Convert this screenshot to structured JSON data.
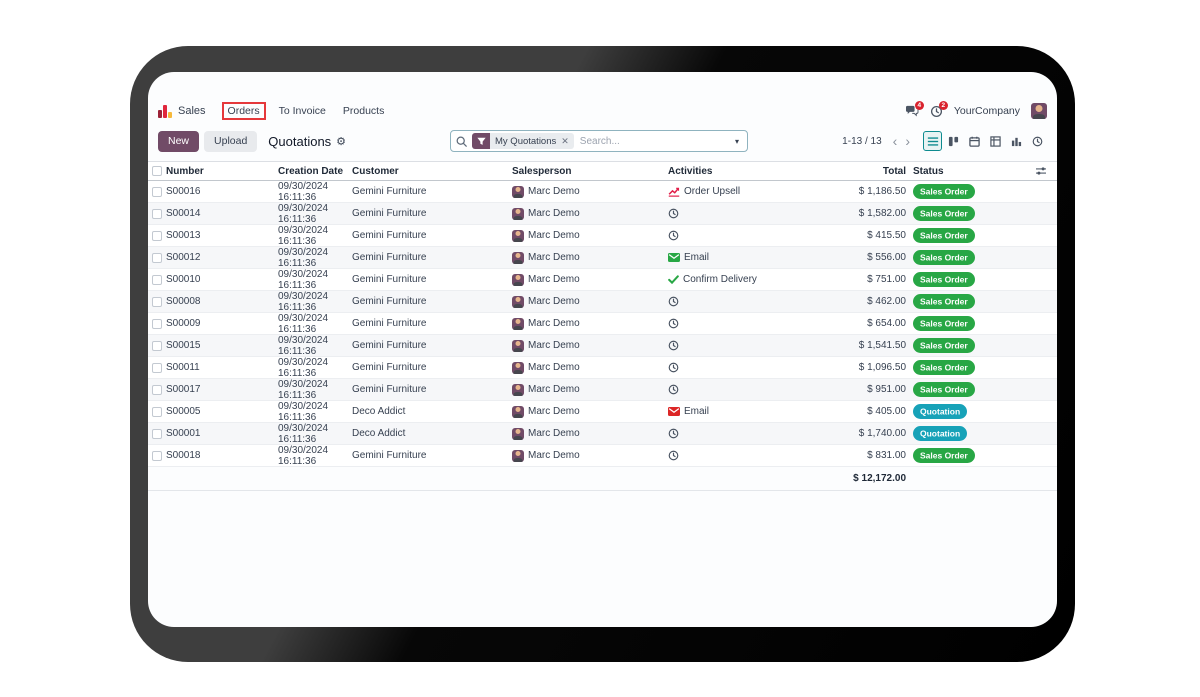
{
  "nav": {
    "app_label": "Sales",
    "menu_items": [
      {
        "label": "Orders",
        "annotated": true
      },
      {
        "label": "To Invoice",
        "annotated": false
      },
      {
        "label": "Products",
        "annotated": false
      }
    ],
    "messages_badge": "4",
    "activities_badge": "2",
    "company": "YourCompany"
  },
  "control": {
    "new_label": "New",
    "upload_label": "Upload",
    "title": "Quotations",
    "search": {
      "facet": "My Quotations",
      "placeholder": "Search..."
    },
    "pager": "1-13 / 13",
    "view_switcher": [
      "list-view",
      "kanban-view",
      "calendar-view",
      "pivot-view",
      "graph-view",
      "activity-view"
    ]
  },
  "table": {
    "headers": {
      "number": "Number",
      "creation_date": "Creation Date",
      "customer": "Customer",
      "salesperson": "Salesperson",
      "activities": "Activities",
      "total": "Total",
      "status": "Status"
    },
    "rows": [
      {
        "number": "S00016",
        "creation_date": "09/30/2024 16:11:36",
        "customer": "Gemini Furniture",
        "salesperson": "Marc Demo",
        "activity": {
          "icon": "chart-up",
          "label": "Order Upsell",
          "color": "#e11d48"
        },
        "total": "$ 1,186.50",
        "status": "Sales Order",
        "status_type": "success"
      },
      {
        "number": "S00014",
        "creation_date": "09/30/2024 16:11:36",
        "customer": "Gemini Furniture",
        "salesperson": "Marc Demo",
        "activity": {
          "icon": "clock",
          "label": "",
          "color": "#4b5563"
        },
        "total": "$ 1,582.00",
        "status": "Sales Order",
        "status_type": "success"
      },
      {
        "number": "S00013",
        "creation_date": "09/30/2024 16:11:36",
        "customer": "Gemini Furniture",
        "salesperson": "Marc Demo",
        "activity": {
          "icon": "clock",
          "label": "",
          "color": "#4b5563"
        },
        "total": "$ 415.50",
        "status": "Sales Order",
        "status_type": "success"
      },
      {
        "number": "S00012",
        "creation_date": "09/30/2024 16:11:36",
        "customer": "Gemini Furniture",
        "salesperson": "Marc Demo",
        "activity": {
          "icon": "envelope",
          "label": "Email",
          "color": "#28a745"
        },
        "total": "$ 556.00",
        "status": "Sales Order",
        "status_type": "success"
      },
      {
        "number": "S00010",
        "creation_date": "09/30/2024 16:11:36",
        "customer": "Gemini Furniture",
        "salesperson": "Marc Demo",
        "activity": {
          "icon": "check",
          "label": "Confirm Delivery",
          "color": "#28a745"
        },
        "total": "$ 751.00",
        "status": "Sales Order",
        "status_type": "success"
      },
      {
        "number": "S00008",
        "creation_date": "09/30/2024 16:11:36",
        "customer": "Gemini Furniture",
        "salesperson": "Marc Demo",
        "activity": {
          "icon": "clock",
          "label": "",
          "color": "#4b5563"
        },
        "total": "$ 462.00",
        "status": "Sales Order",
        "status_type": "success"
      },
      {
        "number": "S00009",
        "creation_date": "09/30/2024 16:11:36",
        "customer": "Gemini Furniture",
        "salesperson": "Marc Demo",
        "activity": {
          "icon": "clock",
          "label": "",
          "color": "#4b5563"
        },
        "total": "$ 654.00",
        "status": "Sales Order",
        "status_type": "success"
      },
      {
        "number": "S00015",
        "creation_date": "09/30/2024 16:11:36",
        "customer": "Gemini Furniture",
        "salesperson": "Marc Demo",
        "activity": {
          "icon": "clock",
          "label": "",
          "color": "#4b5563"
        },
        "total": "$ 1,541.50",
        "status": "Sales Order",
        "status_type": "success"
      },
      {
        "number": "S00011",
        "creation_date": "09/30/2024 16:11:36",
        "customer": "Gemini Furniture",
        "salesperson": "Marc Demo",
        "activity": {
          "icon": "clock",
          "label": "",
          "color": "#4b5563"
        },
        "total": "$ 1,096.50",
        "status": "Sales Order",
        "status_type": "success"
      },
      {
        "number": "S00017",
        "creation_date": "09/30/2024 16:11:36",
        "customer": "Gemini Furniture",
        "salesperson": "Marc Demo",
        "activity": {
          "icon": "clock",
          "label": "",
          "color": "#4b5563"
        },
        "total": "$ 951.00",
        "status": "Sales Order",
        "status_type": "success"
      },
      {
        "number": "S00005",
        "creation_date": "09/30/2024 16:11:36",
        "customer": "Deco Addict",
        "salesperson": "Marc Demo",
        "activity": {
          "icon": "envelope",
          "label": "Email",
          "color": "#dc2626"
        },
        "total": "$ 405.00",
        "status": "Quotation",
        "status_type": "info"
      },
      {
        "number": "S00001",
        "creation_date": "09/30/2024 16:11:36",
        "customer": "Deco Addict",
        "salesperson": "Marc Demo",
        "activity": {
          "icon": "clock",
          "label": "",
          "color": "#4b5563"
        },
        "total": "$ 1,740.00",
        "status": "Quotation",
        "status_type": "info"
      },
      {
        "number": "S00018",
        "creation_date": "09/30/2024 16:11:36",
        "customer": "Gemini Furniture",
        "salesperson": "Marc Demo",
        "activity": {
          "icon": "clock",
          "label": "",
          "color": "#4b5563"
        },
        "total": "$ 831.00",
        "status": "Sales Order",
        "status_type": "success"
      }
    ],
    "grand_total": "$ 12,172.00"
  },
  "colors": {
    "accent": "#714B67",
    "success": "#28a745",
    "info": "#17a2b8",
    "danger": "#d9232e",
    "selected_view": "#0e8b8f",
    "annotation": "#e5383b"
  }
}
